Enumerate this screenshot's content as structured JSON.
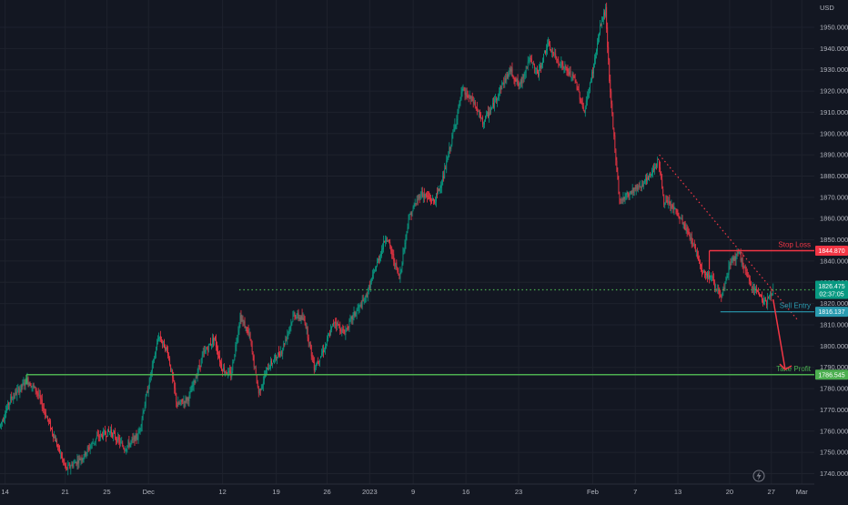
{
  "chart_data": {
    "type": "candlestick",
    "currency": "USD",
    "y_ticks": [
      1740,
      1750,
      1760,
      1770,
      1780,
      1790,
      1800,
      1810,
      1820,
      1830,
      1840,
      1850,
      1860,
      1870,
      1880,
      1890,
      1900,
      1910,
      1920,
      1930,
      1940,
      1950
    ],
    "y_tick_labels": [
      "1740.000",
      "1750.000",
      "1760.000",
      "1770.000",
      "1780.000",
      "1790.000",
      "1800.000",
      "1810.000",
      "1820.000",
      "1830.000",
      "1840.000",
      "1850.000",
      "1860.000",
      "1870.000",
      "1880.000",
      "1890.000",
      "1900.000",
      "1910.000",
      "1920.000",
      "1930.000",
      "1940.000",
      "1950.000"
    ],
    "ylim": [
      1737,
      1961
    ],
    "x_labels": [
      {
        "label": "14",
        "bar": 5
      },
      {
        "label": "21",
        "bar": 70
      },
      {
        "label": "25",
        "bar": 115
      },
      {
        "label": "Dec",
        "bar": 160
      },
      {
        "label": "12",
        "bar": 240
      },
      {
        "label": "19",
        "bar": 298
      },
      {
        "label": "26",
        "bar": 353
      },
      {
        "label": "2023",
        "bar": 399
      },
      {
        "label": "9",
        "bar": 446
      },
      {
        "label": "16",
        "bar": 503
      },
      {
        "label": "23",
        "bar": 560
      },
      {
        "label": "Feb",
        "bar": 640
      },
      {
        "label": "7",
        "bar": 686
      },
      {
        "label": "13",
        "bar": 732
      },
      {
        "label": "20",
        "bar": 788
      },
      {
        "label": "27",
        "bar": 833
      },
      {
        "label": "Mar",
        "bar": 866
      }
    ],
    "price_path": [
      [
        0,
        1762
      ],
      [
        12,
        1775
      ],
      [
        30,
        1784
      ],
      [
        40,
        1779
      ],
      [
        55,
        1762
      ],
      [
        72,
        1742
      ],
      [
        90,
        1748
      ],
      [
        105,
        1757
      ],
      [
        120,
        1760
      ],
      [
        135,
        1752
      ],
      [
        150,
        1758
      ],
      [
        165,
        1790
      ],
      [
        172,
        1805
      ],
      [
        182,
        1797
      ],
      [
        192,
        1772
      ],
      [
        205,
        1776
      ],
      [
        220,
        1796
      ],
      [
        232,
        1804
      ],
      [
        240,
        1790
      ],
      [
        250,
        1786
      ],
      [
        260,
        1814
      ],
      [
        270,
        1805
      ],
      [
        280,
        1778
      ],
      [
        290,
        1790
      ],
      [
        305,
        1798
      ],
      [
        318,
        1815
      ],
      [
        330,
        1812
      ],
      [
        340,
        1790
      ],
      [
        352,
        1800
      ],
      [
        362,
        1812
      ],
      [
        372,
        1806
      ],
      [
        382,
        1814
      ],
      [
        395,
        1822
      ],
      [
        405,
        1835
      ],
      [
        418,
        1852
      ],
      [
        432,
        1832
      ],
      [
        442,
        1860
      ],
      [
        455,
        1872
      ],
      [
        470,
        1868
      ],
      [
        480,
        1880
      ],
      [
        490,
        1900
      ],
      [
        500,
        1920
      ],
      [
        512,
        1915
      ],
      [
        522,
        1905
      ],
      [
        532,
        1912
      ],
      [
        542,
        1922
      ],
      [
        552,
        1930
      ],
      [
        562,
        1922
      ],
      [
        572,
        1935
      ],
      [
        582,
        1928
      ],
      [
        592,
        1942
      ],
      [
        602,
        1935
      ],
      [
        612,
        1930
      ],
      [
        622,
        1925
      ],
      [
        632,
        1910
      ],
      [
        642,
        1932
      ],
      [
        650,
        1952
      ],
      [
        655,
        1958
      ],
      [
        660,
        1918
      ],
      [
        670,
        1868
      ],
      [
        680,
        1872
      ],
      [
        690,
        1875
      ],
      [
        700,
        1878
      ],
      [
        712,
        1888
      ],
      [
        718,
        1868
      ],
      [
        728,
        1865
      ],
      [
        738,
        1858
      ],
      [
        750,
        1848
      ],
      [
        760,
        1835
      ],
      [
        770,
        1832
      ],
      [
        780,
        1822
      ],
      [
        790,
        1840
      ],
      [
        800,
        1843
      ],
      [
        810,
        1830
      ],
      [
        820,
        1825
      ],
      [
        828,
        1820
      ],
      [
        835,
        1826
      ]
    ],
    "series": [
      {
        "name": "Stop Loss",
        "price": 1844.87,
        "label": "1844.870",
        "color": "#f23645"
      },
      {
        "name": "Sell Entry",
        "price": 1816.137,
        "label": "1816.137",
        "color": "#2a9bb0"
      },
      {
        "name": "Take Profit",
        "price": 1786.545,
        "label": "1786.545",
        "color": "#4caf50"
      }
    ],
    "current_price": {
      "label": "1826.475",
      "countdown": "02:37:05",
      "color": "#089981"
    },
    "resistance_line": {
      "price": 1826.475,
      "from_bar": 258,
      "style": "dotted",
      "color": "#4caf50"
    },
    "trend_line": {
      "from": [
        712,
        1890
      ],
      "to": [
        862,
        1812
      ],
      "style": "dotted",
      "color": "#f23645"
    },
    "forecast_arrow": {
      "from": [
        835,
        1822
      ],
      "to": [
        848,
        1789
      ],
      "color": "#f23645"
    },
    "colors": {
      "background": "#131722",
      "up": "#089981",
      "down": "#f23645",
      "grid": "#1e222d",
      "axis_text": "#b2b5be"
    }
  },
  "ui": {
    "currency_label": "USD",
    "lightning_icon": "lightning-icon"
  }
}
